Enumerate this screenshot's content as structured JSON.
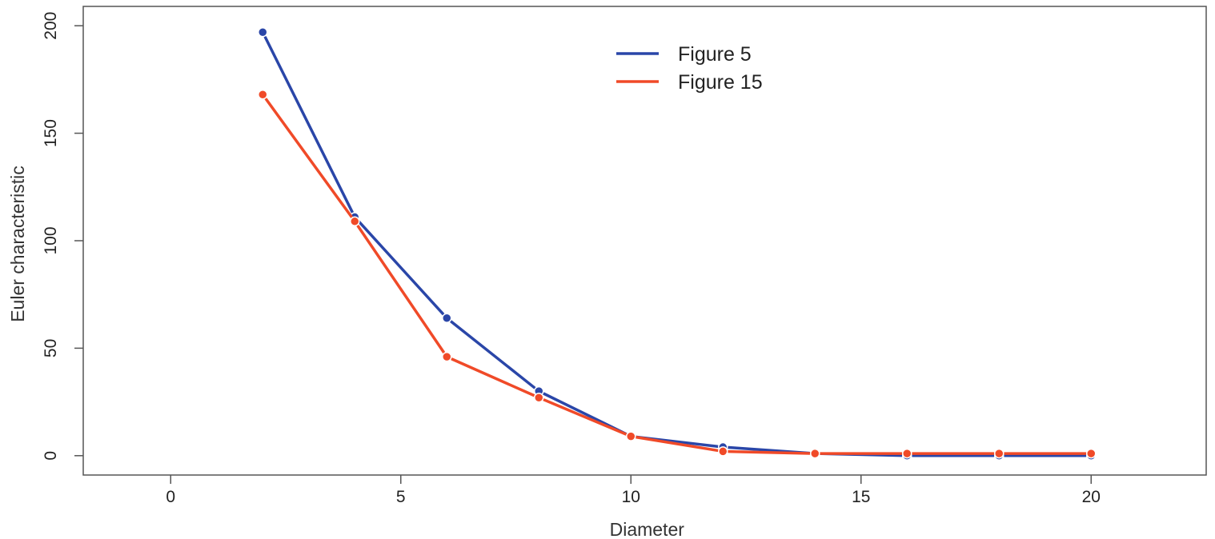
{
  "chart_data": {
    "type": "line",
    "title": "",
    "xlabel": "Diameter",
    "ylabel": "Euler characteristic",
    "xlim": [
      -1.9,
      22.5
    ],
    "ylim": [
      -9,
      209
    ],
    "xticks": [
      0,
      5,
      10,
      15,
      20
    ],
    "yticks": [
      0,
      50,
      100,
      150,
      200
    ],
    "grid": false,
    "legend_position": "top-center",
    "x": [
      2,
      4,
      6,
      8,
      10,
      12,
      14,
      16,
      18,
      20
    ],
    "series": [
      {
        "name": "Figure 5",
        "color": "#2a46a8",
        "values": [
          197,
          111,
          64,
          30,
          9,
          4,
          1,
          0,
          0,
          0
        ]
      },
      {
        "name": "Figure 15",
        "color": "#f04a28",
        "values": [
          168,
          109,
          46,
          27,
          9,
          2,
          1,
          1,
          1,
          1
        ]
      }
    ]
  }
}
